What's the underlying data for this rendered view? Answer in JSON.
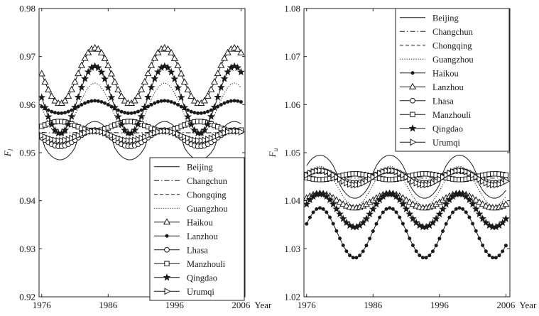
{
  "chart_data": [
    {
      "type": "line",
      "ylabel_main": "F",
      "ylabel_sub": "l",
      "xlabel": "Year",
      "xlim": [
        1975.6,
        2006.6
      ],
      "ylim": [
        0.92,
        0.98
      ],
      "xticks": [
        1976,
        1986,
        1996,
        2006
      ],
      "xtick_labels": [
        "1976",
        "1986",
        "1996",
        "2006"
      ],
      "yticks": [
        0.92,
        0.93,
        0.94,
        0.95,
        0.96,
        0.97,
        0.98
      ],
      "ytick_labels": [
        "0.92",
        "0.93",
        "0.94",
        "0.95",
        "0.96",
        "0.97",
        "0.98"
      ],
      "legend_position": "lower-right",
      "series": [
        {
          "name": "Beijing",
          "line": "solid",
          "marker": "none",
          "mean": 0.9525,
          "amp": 0.004,
          "phase": 1.5,
          "sharp": 1.5
        },
        {
          "name": "Changchun",
          "line": "dashdot",
          "marker": "none",
          "mean": 0.9542,
          "amp": 0.0001,
          "phase": 1.5,
          "sharp": 1.0
        },
        {
          "name": "Chongqing",
          "line": "dashed",
          "marker": "none",
          "mean": 0.9535,
          "amp": 0.0014,
          "phase": 1.5,
          "sharp": 1.0
        },
        {
          "name": "Guangzhou",
          "line": "dotted",
          "marker": "none",
          "mean": 0.959,
          "amp": 0.0055,
          "phase": 1.5,
          "sharp": 1.0
        },
        {
          "name": "Haikou",
          "line": "solid",
          "marker": "triangle",
          "mean": 0.966,
          "amp": 0.0058,
          "phase": 1.5,
          "sharp": 1.0
        },
        {
          "name": "Lanzhou",
          "line": "solid",
          "marker": "dot",
          "mean": 0.9595,
          "amp": 0.0013,
          "phase": 1.5,
          "sharp": 1.0
        },
        {
          "name": "Lhasa",
          "line": "solid",
          "marker": "circle",
          "mean": 0.953,
          "amp": 0.0017,
          "phase": 1.5,
          "sharp": 1.0
        },
        {
          "name": "Manzhouli",
          "line": "solid",
          "marker": "square",
          "mean": 0.9555,
          "amp": 0.001,
          "phase": -1.6,
          "sharp": 1.0
        },
        {
          "name": "Qingdao",
          "line": "solid",
          "marker": "star",
          "mean": 0.961,
          "amp": 0.007,
          "phase": 1.5,
          "sharp": 1.0
        },
        {
          "name": "Urumqi",
          "line": "solid",
          "marker": "tri-right",
          "mean": 0.9535,
          "amp": 0.001,
          "phase": 1.5,
          "sharp": 1.0
        }
      ]
    },
    {
      "type": "line",
      "ylabel_main": "F",
      "ylabel_sub": "u",
      "xlabel": "Year",
      "xlim": [
        1975.6,
        2006.6
      ],
      "ylim": [
        1.02,
        1.08
      ],
      "xticks": [
        1976,
        1986,
        1996,
        2006
      ],
      "xtick_labels": [
        "1976",
        "1986",
        "1996",
        "2006"
      ],
      "yticks": [
        1.02,
        1.03,
        1.04,
        1.05,
        1.06,
        1.07,
        1.08
      ],
      "ytick_labels": [
        "1.02",
        "1.03",
        "1.04",
        "1.05",
        "1.06",
        "1.07",
        "1.08"
      ],
      "legend_position": "top-right",
      "series": [
        {
          "name": "Beijing",
          "line": "solid",
          "marker": "none",
          "mean": 1.045,
          "amp": 0.0045,
          "phase": -1.2,
          "sharp": 1.5
        },
        {
          "name": "Changchun",
          "line": "dashdot",
          "marker": "none",
          "mean": 1.0452,
          "amp": 0.0005,
          "phase": -1.2,
          "sharp": 1.0
        },
        {
          "name": "Chongqing",
          "line": "dashed",
          "marker": "none",
          "mean": 1.0453,
          "amp": 0.0012,
          "phase": -1.2,
          "sharp": 1.0
        },
        {
          "name": "Guangzhou",
          "line": "dotted",
          "marker": "none",
          "mean": 1.043,
          "amp": 0.0042,
          "phase": -1.2,
          "sharp": 1.0
        },
        {
          "name": "Haikou",
          "line": "solid",
          "marker": "dot",
          "mean": 1.0333,
          "amp": 0.0052,
          "phase": -1.2,
          "sharp": 1.0
        },
        {
          "name": "Lanzhou",
          "line": "solid",
          "marker": "triangle",
          "mean": 1.04,
          "amp": 0.0015,
          "phase": -1.2,
          "sharp": 1.0
        },
        {
          "name": "Lhasa",
          "line": "solid",
          "marker": "circle",
          "mean": 1.045,
          "amp": 0.0013,
          "phase": -1.2,
          "sharp": 1.0
        },
        {
          "name": "Manzhouli",
          "line": "solid",
          "marker": "square",
          "mean": 1.045,
          "amp": 0.0006,
          "phase": 1.9,
          "sharp": 1.0
        },
        {
          "name": "Qingdao",
          "line": "solid",
          "marker": "star",
          "mean": 1.038,
          "amp": 0.0035,
          "phase": -1.2,
          "sharp": 1.0
        },
        {
          "name": "Urumqi",
          "line": "solid",
          "marker": "tri-right",
          "mean": 1.0448,
          "amp": 0.0015,
          "phase": -1.2,
          "sharp": 1.0
        }
      ]
    }
  ]
}
